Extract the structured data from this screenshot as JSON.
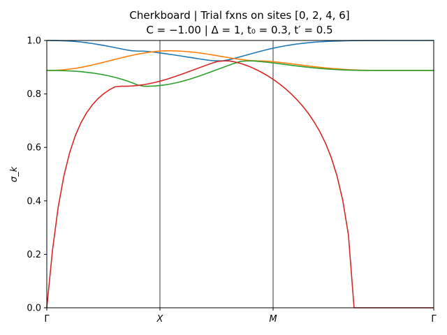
{
  "chart_data": {
    "type": "line",
    "title": "Cherkboard | Trial fxns on sites [0, 2, 4, 6]",
    "subtitle": "C = −1.00 | Δ = 1,  t₀ = 0.3,  t′ = 0.5",
    "ylabel": "σ_k",
    "xlabel": "",
    "ylim": [
      0,
      1
    ],
    "yticks": [
      "0.0",
      "0.2",
      "0.4",
      "0.6",
      "0.8",
      "1.0"
    ],
    "xticks": [
      "Γ",
      "X",
      "M",
      "Γ"
    ],
    "grid": false,
    "legend": "none",
    "vlines": [
      "X",
      "M"
    ],
    "x": [
      0.0,
      0.05,
      0.1,
      0.15,
      0.2,
      0.25,
      0.3,
      0.35,
      0.4,
      0.45,
      0.5,
      0.55,
      0.6,
      0.65,
      0.7,
      0.75,
      0.8,
      0.85,
      0.9,
      0.95,
      1.0,
      1.05,
      1.1,
      1.15,
      1.2,
      1.25,
      1.3,
      1.35,
      1.4,
      1.45,
      1.5,
      1.55,
      1.6,
      1.65,
      1.7,
      1.75,
      1.8,
      1.85,
      1.9,
      1.95,
      2.0,
      2.05,
      2.1,
      2.15,
      2.2,
      2.25,
      2.3,
      2.35,
      2.4,
      2.45,
      2.5,
      2.55,
      2.6,
      2.65,
      2.7,
      2.75,
      2.8,
      2.85,
      2.9,
      2.95,
      3.0,
      3.05,
      3.1,
      3.15,
      3.2,
      3.25,
      3.3,
      3.35,
      3.4
    ],
    "series": [
      {
        "color": "#1f77b4",
        "values": [
          1.0,
          0.9999,
          0.9996,
          0.9989,
          0.9978,
          0.9962,
          0.9941,
          0.9916,
          0.9886,
          0.9852,
          0.9815,
          0.9775,
          0.9733,
          0.969,
          0.9648,
          0.9613,
          0.9602,
          0.9602,
          0.9584,
          0.9559,
          0.9531,
          0.9502,
          0.9471,
          0.9439,
          0.9406,
          0.9372,
          0.9338,
          0.9305,
          0.9273,
          0.9246,
          0.9237,
          0.9241,
          0.9281,
          0.9332,
          0.9389,
          0.9448,
          0.9508,
          0.9566,
          0.9621,
          0.9673,
          0.9721,
          0.9765,
          0.9804,
          0.9839,
          0.9869,
          0.9895,
          0.9917,
          0.9936,
          0.9951,
          0.9963,
          0.9973,
          0.998,
          0.9986,
          0.9991,
          0.9994,
          0.9996,
          0.9998,
          0.9999,
          0.9999,
          1.0,
          1.0,
          1.0,
          1.0,
          1.0,
          1.0,
          1.0,
          1.0,
          1.0,
          1.0
        ]
      },
      {
        "color": "#ff7f0e",
        "values": [
          0.888,
          0.888,
          0.889,
          0.8905,
          0.8928,
          0.8958,
          0.8994,
          0.9036,
          0.9083,
          0.9133,
          0.9186,
          0.924,
          0.9294,
          0.9347,
          0.9398,
          0.9446,
          0.949,
          0.9529,
          0.9562,
          0.9588,
          0.9606,
          0.9614,
          0.9613,
          0.9607,
          0.9595,
          0.9578,
          0.9556,
          0.9529,
          0.9498,
          0.9464,
          0.9428,
          0.9392,
          0.9357,
          0.9323,
          0.9293,
          0.9267,
          0.9245,
          0.9237,
          0.9236,
          0.9222,
          0.9203,
          0.918,
          0.9155,
          0.9128,
          0.91,
          0.9072,
          0.9046,
          0.902,
          0.8996,
          0.8975,
          0.8955,
          0.8938,
          0.8923,
          0.891,
          0.8899,
          0.8891,
          0.8885,
          0.8881,
          0.8879,
          0.8878,
          0.8879,
          0.888,
          0.888,
          0.888,
          0.888,
          0.888,
          0.888,
          0.888,
          0.888
        ]
      },
      {
        "color": "#2ca02c",
        "values": [
          0.888,
          0.8879,
          0.8876,
          0.887,
          0.8861,
          0.8849,
          0.8832,
          0.8811,
          0.8785,
          0.8753,
          0.8715,
          0.8671,
          0.862,
          0.8561,
          0.8494,
          0.8418,
          0.8333,
          0.8289,
          0.8288,
          0.8298,
          0.8317,
          0.8346,
          0.8384,
          0.843,
          0.8484,
          0.8545,
          0.8612,
          0.8684,
          0.876,
          0.8838,
          0.8917,
          0.8996,
          0.9073,
          0.9147,
          0.9215,
          0.9233,
          0.9237,
          0.9222,
          0.9203,
          0.918,
          0.9155,
          0.9128,
          0.91,
          0.9072,
          0.9046,
          0.902,
          0.8996,
          0.8975,
          0.8955,
          0.8938,
          0.8923,
          0.891,
          0.8899,
          0.8891,
          0.8885,
          0.8881,
          0.8879,
          0.8878,
          0.8879,
          0.888,
          0.888,
          0.888,
          0.888,
          0.888,
          0.888,
          0.888,
          0.888,
          0.888,
          0.888
        ]
      },
      {
        "color": "#d62728",
        "values": [
          0.0,
          0.2153,
          0.3759,
          0.4931,
          0.5792,
          0.6434,
          0.6921,
          0.7296,
          0.759,
          0.7823,
          0.8008,
          0.8154,
          0.8267,
          0.8289,
          0.8288,
          0.8298,
          0.8317,
          0.8346,
          0.8384,
          0.843,
          0.8484,
          0.8545,
          0.8612,
          0.8684,
          0.876,
          0.8838,
          0.8917,
          0.8996,
          0.9073,
          0.9147,
          0.9215,
          0.9233,
          0.9237,
          0.9201,
          0.9146,
          0.9075,
          0.899,
          0.8891,
          0.8779,
          0.8654,
          0.8514,
          0.8358,
          0.8185,
          0.7992,
          0.7777,
          0.7535,
          0.7262,
          0.6948,
          0.6582,
          0.6147,
          0.5614,
          0.4936,
          0.4033,
          0.2742,
          0.0,
          0.0,
          0.0,
          0.0,
          0.0,
          0.0,
          0.0,
          0.0,
          0.0,
          0.0,
          0.0,
          0.0,
          0.0,
          0.0,
          0.0
        ]
      }
    ]
  }
}
